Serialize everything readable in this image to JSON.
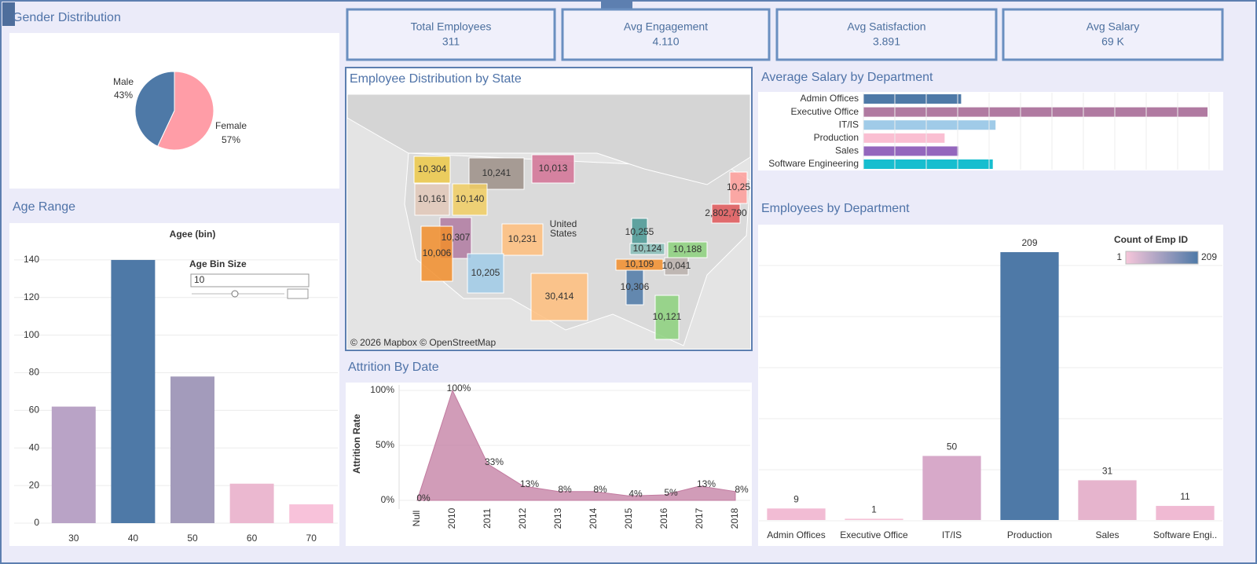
{
  "kpis": [
    {
      "label": "Total Employees",
      "value": "311"
    },
    {
      "label": "Avg Engagement",
      "value": "4.110"
    },
    {
      "label": "Avg Satisfaction",
      "value": "3.891"
    },
    {
      "label": "Avg Salary",
      "value": "69 K"
    }
  ],
  "chart_data": [
    {
      "type": "pie",
      "title": "Gender Distribution",
      "categories": [
        "Male",
        "Female"
      ],
      "values": [
        43,
        57
      ],
      "value_labels": [
        "43%",
        "57%"
      ],
      "colors": [
        "#4e79a7",
        "#ff9da7"
      ]
    },
    {
      "type": "bar",
      "title": "Age Range",
      "subtitle": "Agee (bin)",
      "categories": [
        "30",
        "40",
        "50",
        "60",
        "70"
      ],
      "values": [
        62,
        140,
        78,
        21,
        10
      ],
      "colors": [
        "#b9a3c6",
        "#4e79a7",
        "#a39bbb",
        "#ebb8d0",
        "#f8c2da"
      ],
      "ylim": [
        0,
        150
      ],
      "yticks": [
        0,
        20,
        40,
        60,
        80,
        100,
        120,
        140
      ],
      "grid": true,
      "control": {
        "label": "Age Bin Size",
        "value": "10"
      }
    },
    {
      "type": "map",
      "title": "Employee Distribution by State",
      "labels": [
        "10,304",
        "10,241",
        "10,013",
        "10,161",
        "10,140",
        "10,307",
        "10,231",
        "10,006",
        "10,205",
        "30,414",
        "10,255",
        "10,124",
        "10,188",
        "10,109",
        "10,041",
        "10,306",
        "10,121",
        "2,802,790",
        "10,25"
      ],
      "colors": [
        "#edc948",
        "#9c8f87",
        "#d37295",
        "#e2c8b8",
        "#f1ce63",
        "#b07aa1",
        "#ffbe7d",
        "#f28e2b",
        "#a0cbe8",
        "#ffbe7d",
        "#499894",
        "#86bcb6",
        "#8cd17d",
        "#f28e2b",
        "#bab0ac",
        "#4e79a7",
        "#8cd17d",
        "#e15759",
        "#ff9d9a"
      ],
      "country_label": [
        "United",
        "States"
      ],
      "attribution": "© 2026 Mapbox © OpenStreetMap"
    },
    {
      "type": "bar",
      "orientation": "horizontal",
      "title": "Average Salary by Department",
      "categories": [
        "Admin Offices",
        "Executive Office",
        "IT/IS",
        "Production",
        "Sales",
        "Software Engineering"
      ],
      "values": [
        71000,
        250000,
        96000,
        59000,
        69000,
        94000
      ],
      "colors": [
        "#4e79a7",
        "#b07aa1",
        "#a0cbe8",
        "#fabfd2",
        "#9467bd",
        "#17becf"
      ]
    },
    {
      "type": "area",
      "title": "Attrition By Date",
      "y_label": "Attrition Rate",
      "categories": [
        "Null",
        "2010",
        "2011",
        "2012",
        "2013",
        "2014",
        "2015",
        "2016",
        "2017",
        "2018"
      ],
      "values": [
        0,
        100,
        33,
        13,
        8,
        8,
        4,
        5,
        13,
        8
      ],
      "value_labels": [
        "0%",
        "100%",
        "33%",
        "13%",
        "8%",
        "8%",
        "4%",
        "5%",
        "13%",
        "8%"
      ],
      "color": "#c27ba0",
      "ylim": [
        0,
        100
      ],
      "yticks": [
        {
          "value": 0,
          "label": "0%"
        },
        {
          "value": 50,
          "label": "50%"
        },
        {
          "value": 100,
          "label": "100%"
        }
      ]
    },
    {
      "type": "bar",
      "title": "Employees by Department",
      "categories": [
        "Admin Offices",
        "Executive Office",
        "IT/IS",
        "Production",
        "Sales",
        "Software Engi.."
      ],
      "values": [
        9,
        1,
        50,
        209,
        31,
        11
      ],
      "colors": [
        "#f2bcd4",
        "#f5c3d8",
        "#d7a9c9",
        "#4e79a7",
        "#e6b4cd",
        "#f0bad3"
      ],
      "show_values": true,
      "color_legend": {
        "title": "Count of Emp ID",
        "min": 1,
        "max": 209,
        "colors": [
          "#f7c6da",
          "#4e79a7"
        ]
      }
    }
  ]
}
